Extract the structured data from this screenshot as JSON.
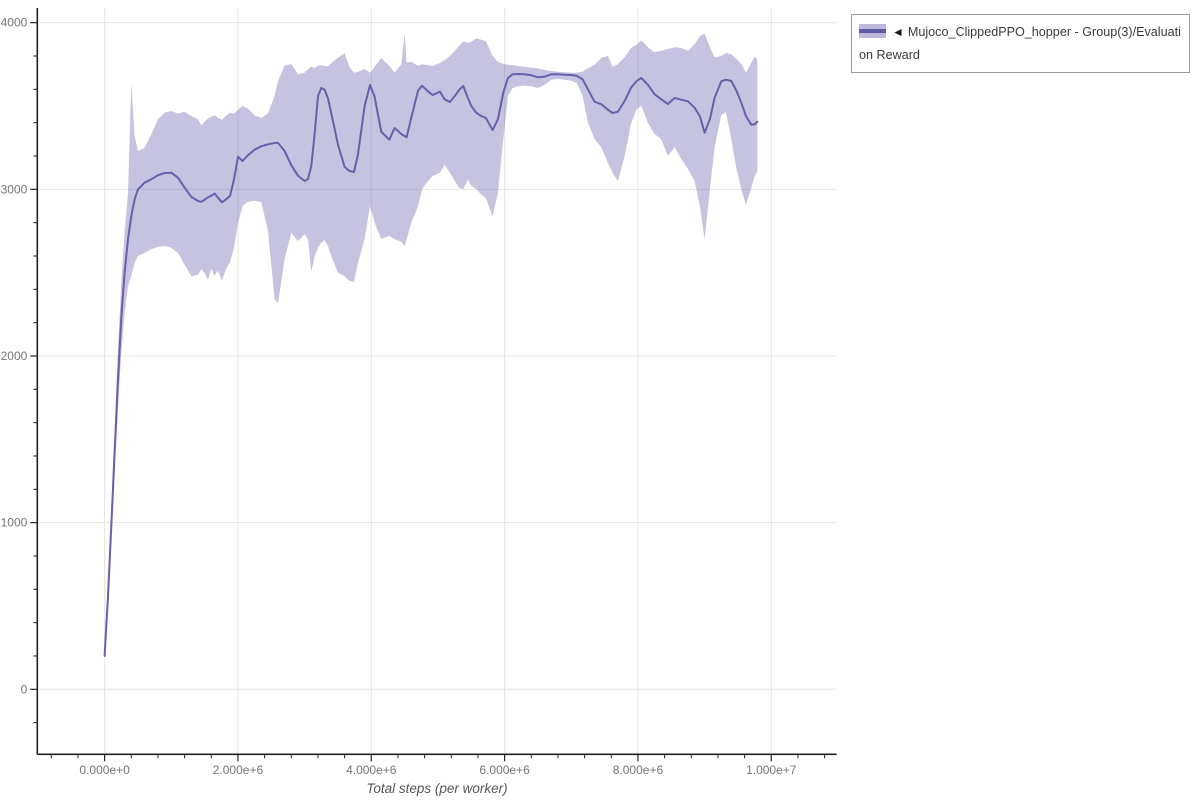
{
  "colors": {
    "line": "#6661ab",
    "band": "#6661ab",
    "grid": "#e5e5e5",
    "axis": "#222222",
    "tick_label": "#757575",
    "axis_title": "#555555",
    "legend_border": "#999999",
    "legend_text": "#3a3a3a",
    "swatch_band": "#bcb8dc",
    "swatch_line": "#5f5aa5"
  },
  "legend": {
    "marker": "◄",
    "label": "Mujoco_ClippedPPO_hopper - Group(3)/Evaluation Reward"
  },
  "chart_data": {
    "type": "line",
    "title": "",
    "xlabel": "Total steps (per worker)",
    "ylabel": "",
    "grid": true,
    "legend_position": "outside-top-right",
    "xlim": [
      -1010000,
      10980000
    ],
    "ylim": [
      -390,
      4088
    ],
    "x_major_ticks": [
      0,
      2000000,
      4000000,
      6000000,
      8000000,
      10000000
    ],
    "x_tick_labels": [
      "0.000e+0",
      "2.000e+6",
      "4.000e+6",
      "6.000e+6",
      "8.000e+6",
      "1.000e+7"
    ],
    "x_minor_step": 400000,
    "x_minor_range": [
      -800000,
      10800000
    ],
    "y_major_ticks": [
      0,
      1000,
      2000,
      3000,
      4000
    ],
    "y_tick_labels": [
      "0",
      "1000",
      "2000",
      "3000",
      "4000"
    ],
    "y_minor_step": 200,
    "y_minor_range": [
      -200,
      4000
    ],
    "x_unit_multiplier": 1000000,
    "series": [
      {
        "name": "Mujoco_ClippedPPO_hopper - Group(3)/Evaluation Reward",
        "band_opacity": 0.38,
        "x": [
          0.0,
          0.05,
          0.1,
          0.15,
          0.2,
          0.25,
          0.3,
          0.35,
          0.4,
          0.45,
          0.5,
          0.6,
          0.7,
          0.8,
          0.9,
          1.0,
          1.1,
          1.2,
          1.3,
          1.4,
          1.45,
          1.5,
          1.55,
          1.6,
          1.65,
          1.7,
          1.76,
          1.82,
          1.88,
          1.94,
          2.0,
          2.07,
          2.15,
          2.25,
          2.35,
          2.45,
          2.55,
          2.6,
          2.7,
          2.8,
          2.9,
          3.0,
          3.05,
          3.1,
          3.15,
          3.2,
          3.25,
          3.3,
          3.35,
          3.4,
          3.5,
          3.6,
          3.67,
          3.74,
          3.8,
          3.9,
          3.98,
          4.05,
          4.15,
          4.27,
          4.35,
          4.45,
          4.5,
          4.53,
          4.6,
          4.7,
          4.76,
          4.85,
          4.92,
          5.03,
          5.1,
          5.18,
          5.25,
          5.32,
          5.38,
          5.45,
          5.5,
          5.58,
          5.65,
          5.72,
          5.82,
          5.9,
          5.98,
          6.05,
          6.12,
          6.2,
          6.3,
          6.4,
          6.5,
          6.6,
          6.7,
          6.8,
          6.9,
          7.0,
          7.08,
          7.17,
          7.25,
          7.35,
          7.45,
          7.55,
          7.62,
          7.7,
          7.8,
          7.9,
          7.98,
          8.05,
          8.15,
          8.25,
          8.35,
          8.45,
          8.55,
          8.65,
          8.75,
          8.85,
          8.93,
          9.0,
          9.08,
          9.15,
          9.25,
          9.32,
          9.4,
          9.48,
          9.55,
          9.62,
          9.7,
          9.75,
          9.79
        ],
        "mean": [
          200,
          560,
          980,
          1420,
          1860,
          2230,
          2500,
          2700,
          2840,
          2940,
          3000,
          3040,
          3060,
          3085,
          3098,
          3100,
          3070,
          3010,
          2955,
          2930,
          2925,
          2938,
          2952,
          2962,
          2975,
          2950,
          2922,
          2940,
          2960,
          3060,
          3195,
          3170,
          3205,
          3238,
          3258,
          3270,
          3278,
          3280,
          3230,
          3145,
          3082,
          3050,
          3062,
          3140,
          3330,
          3560,
          3608,
          3598,
          3545,
          3455,
          3268,
          3135,
          3110,
          3104,
          3210,
          3500,
          3626,
          3555,
          3345,
          3298,
          3368,
          3332,
          3320,
          3312,
          3430,
          3592,
          3622,
          3588,
          3566,
          3586,
          3540,
          3524,
          3558,
          3598,
          3620,
          3548,
          3500,
          3458,
          3440,
          3428,
          3356,
          3420,
          3580,
          3668,
          3690,
          3692,
          3690,
          3684,
          3672,
          3676,
          3690,
          3690,
          3688,
          3686,
          3682,
          3660,
          3600,
          3526,
          3510,
          3478,
          3458,
          3466,
          3530,
          3612,
          3650,
          3668,
          3628,
          3570,
          3540,
          3512,
          3548,
          3538,
          3528,
          3490,
          3438,
          3340,
          3420,
          3550,
          3648,
          3658,
          3650,
          3590,
          3520,
          3440,
          3388,
          3390,
          3406
        ],
        "hi": [
          215,
          620,
          1080,
          1560,
          2040,
          2440,
          2740,
          2980,
          3640,
          3320,
          3230,
          3250,
          3330,
          3420,
          3460,
          3470,
          3455,
          3465,
          3440,
          3420,
          3385,
          3405,
          3425,
          3435,
          3445,
          3430,
          3418,
          3442,
          3460,
          3455,
          3478,
          3500,
          3485,
          3445,
          3428,
          3455,
          3560,
          3650,
          3742,
          3752,
          3690,
          3700,
          3720,
          3736,
          3730,
          3742,
          3745,
          3740,
          3738,
          3758,
          3790,
          3816,
          3736,
          3700,
          3705,
          3722,
          3700,
          3735,
          3788,
          3742,
          3700,
          3750,
          3936,
          3760,
          3765,
          3742,
          3750,
          3745,
          3740,
          3758,
          3776,
          3800,
          3830,
          3862,
          3888,
          3880,
          3885,
          3906,
          3898,
          3888,
          3800,
          3766,
          3752,
          3748,
          3746,
          3740,
          3736,
          3730,
          3726,
          3716,
          3710,
          3706,
          3702,
          3700,
          3700,
          3706,
          3726,
          3748,
          3790,
          3800,
          3735,
          3750,
          3792,
          3850,
          3868,
          3895,
          3852,
          3822,
          3832,
          3842,
          3852,
          3848,
          3832,
          3870,
          3918,
          3935,
          3852,
          3792,
          3800,
          3818,
          3810,
          3782,
          3752,
          3700,
          3760,
          3795,
          3780
        ],
        "lo": [
          185,
          500,
          880,
          1280,
          1680,
          2020,
          2260,
          2420,
          2480,
          2560,
          2600,
          2620,
          2640,
          2656,
          2660,
          2650,
          2618,
          2548,
          2478,
          2488,
          2520,
          2498,
          2458,
          2525,
          2482,
          2512,
          2452,
          2522,
          2562,
          2648,
          2800,
          2900,
          2925,
          2932,
          2922,
          2750,
          2340,
          2315,
          2580,
          2740,
          2690,
          2730,
          2700,
          2505,
          2600,
          2650,
          2680,
          2695,
          2660,
          2598,
          2500,
          2478,
          2452,
          2446,
          2560,
          2700,
          2898,
          2800,
          2702,
          2722,
          2700,
          2685,
          2658,
          2700,
          2800,
          2898,
          3000,
          3048,
          3080,
          3100,
          3148,
          3100,
          3052,
          3008,
          3002,
          3058,
          3020,
          3000,
          2968,
          2948,
          2838,
          2980,
          3300,
          3558,
          3608,
          3618,
          3622,
          3618,
          3608,
          3628,
          3658,
          3662,
          3658,
          3652,
          3640,
          3560,
          3400,
          3302,
          3252,
          3160,
          3100,
          3048,
          3200,
          3400,
          3480,
          3502,
          3400,
          3332,
          3300,
          3200,
          3252,
          3182,
          3122,
          3048,
          2900,
          2700,
          3000,
          3252,
          3448,
          3462,
          3300,
          3120,
          3000,
          2908,
          3010,
          3080,
          3108
        ]
      }
    ]
  }
}
